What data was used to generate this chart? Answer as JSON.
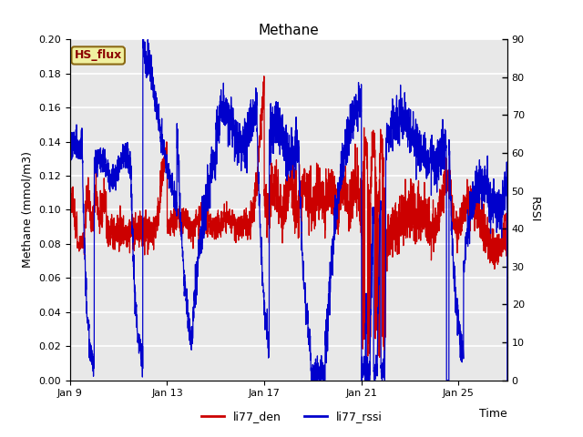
{
  "title": "Methane",
  "xlabel": "Time",
  "ylabel_left": "Methane (mmol/m3)",
  "ylabel_right": "RSSI",
  "ylim_left": [
    0.0,
    0.2
  ],
  "ylim_right": [
    0,
    90
  ],
  "yticks_left": [
    0.0,
    0.02,
    0.04,
    0.06,
    0.08,
    0.1,
    0.12,
    0.14,
    0.16,
    0.18,
    0.2
  ],
  "yticks_right": [
    0,
    10,
    20,
    30,
    40,
    50,
    60,
    70,
    80,
    90
  ],
  "xtick_positions": [
    0,
    4,
    8,
    12,
    16
  ],
  "xtick_labels": [
    "Jan 9",
    "Jan 13",
    "Jan 17",
    "Jan 21",
    "Jan 25"
  ],
  "xlim": [
    0,
    18
  ],
  "legend_label1": "li77_den",
  "legend_label2": "li77_rssi",
  "color1": "#cc0000",
  "color2": "#0000cc",
  "annotation_text": "HS_flux",
  "annotation_bg": "#f0f0a0",
  "annotation_border": "#8b6914",
  "background_color": "#e8e8e8",
  "grid_color": "#ffffff",
  "title_fontsize": 11,
  "label_fontsize": 9,
  "tick_fontsize": 8,
  "legend_fontsize": 9,
  "linewidth": 0.9
}
